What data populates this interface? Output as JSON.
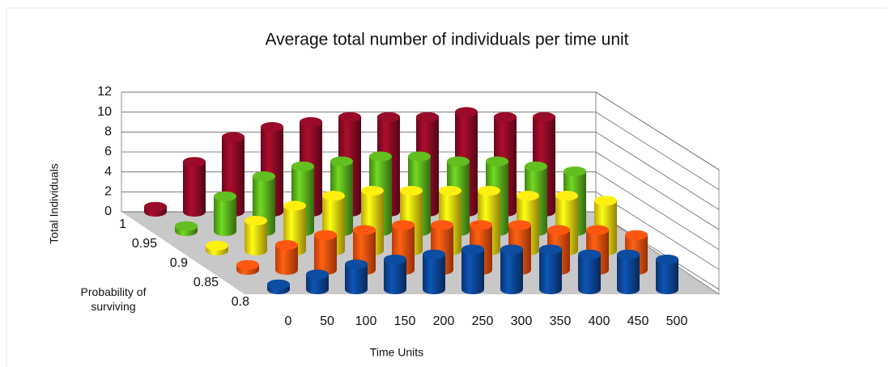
{
  "chart_data": {
    "type": "bar3d",
    "title": "Average total number of individuals per time unit",
    "y_label": "Total Individuals",
    "x_label": "Time Units",
    "depth_label": "Probability of surviving",
    "categories": [
      "0",
      "50",
      "100",
      "150",
      "200",
      "250",
      "300",
      "350",
      "400",
      "450",
      "500"
    ],
    "series": [
      {
        "name": "1",
        "color": "#8b0a24",
        "values": [
          0.5,
          5,
          7.5,
          8.5,
          9,
          9.5,
          9.5,
          9.5,
          10,
          9.5,
          9.5
        ]
      },
      {
        "name": "0.95",
        "color": "#5aae1c",
        "values": [
          0.5,
          3.5,
          5.5,
          6.5,
          7,
          7.5,
          7.5,
          7,
          7,
          6.5,
          6
        ]
      },
      {
        "name": "0.9",
        "color": "#f7d90f",
        "values": [
          0.5,
          3,
          4.5,
          5.5,
          6,
          6,
          6,
          6,
          5.5,
          5.5,
          5
        ]
      },
      {
        "name": "0.85",
        "color": "#fb4f0e",
        "values": [
          0.5,
          2.5,
          3.5,
          4,
          4.5,
          4.5,
          4.5,
          4.5,
          4,
          4,
          3.5
        ]
      },
      {
        "name": "0.8",
        "color": "#0b4592",
        "values": [
          0.5,
          1.5,
          2.5,
          3,
          3.5,
          4,
          4,
          4,
          3.5,
          3.5,
          3
        ]
      }
    ],
    "ylim": [
      0,
      12
    ],
    "yticks": [
      0,
      2,
      4,
      6,
      8,
      10,
      12
    ],
    "grid": true
  }
}
